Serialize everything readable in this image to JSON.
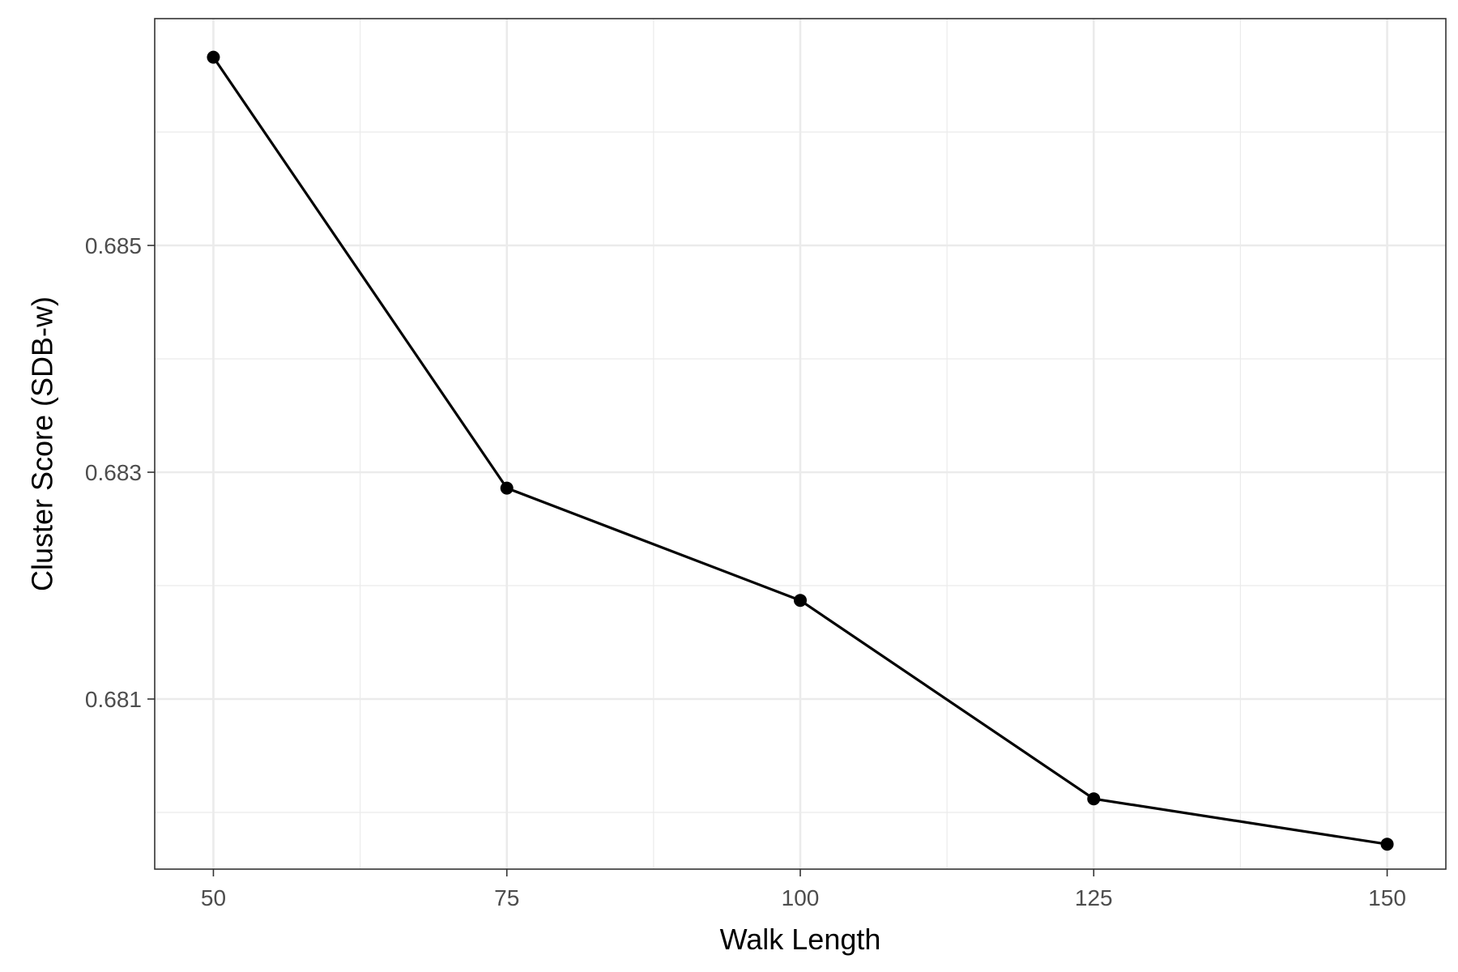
{
  "chart_data": {
    "type": "line",
    "title": "",
    "xlabel": "Walk Length",
    "ylabel": "Cluster Score (SDB-w)",
    "x": [
      50,
      75,
      100,
      125,
      150
    ],
    "series": [
      {
        "values": [
          0.68666,
          0.68286,
          0.68187,
          0.68012,
          0.67972
        ]
      }
    ],
    "x_ticks": [
      50,
      75,
      100,
      125,
      150
    ],
    "y_ticks": [
      0.681,
      0.683,
      0.685
    ],
    "x_tick_labels": [
      "50",
      "75",
      "100",
      "125",
      "150"
    ],
    "y_tick_labels": [
      "0.681",
      "0.683",
      "0.685"
    ],
    "xlim": [
      45,
      155
    ],
    "ylim": [
      0.6795,
      0.687
    ],
    "grid": true,
    "line_color": "#000000",
    "grid_color": "#ebebeb",
    "border_color": "#333333"
  }
}
